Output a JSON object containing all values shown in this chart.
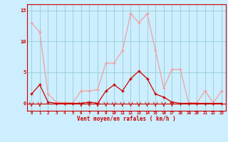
{
  "x": [
    0,
    1,
    2,
    3,
    4,
    5,
    6,
    7,
    8,
    9,
    10,
    11,
    12,
    13,
    14,
    15,
    16,
    17,
    18,
    19,
    20,
    21,
    22,
    23
  ],
  "rafales": [
    13.0,
    11.5,
    1.5,
    0.2,
    0.1,
    0.1,
    2.0,
    2.0,
    2.2,
    6.5,
    6.5,
    8.5,
    14.5,
    13.0,
    14.5,
    8.5,
    2.5,
    5.5,
    5.5,
    0.1,
    0.1,
    2.0,
    0.1,
    2.0
  ],
  "moyen": [
    1.5,
    3.0,
    0.2,
    0.0,
    0.0,
    0.0,
    0.0,
    0.2,
    0.0,
    2.0,
    3.0,
    2.0,
    4.0,
    5.2,
    4.0,
    1.5,
    1.0,
    0.2,
    0.0,
    0.0,
    0.0,
    0.0,
    0.0,
    0.0
  ],
  "color_rafales": "#f0a0a0",
  "color_moyen": "#cc0000",
  "bg_color": "#cceeff",
  "grid_color": "#99cccc",
  "xlabel": "Vent moyen/en rafales ( km/h )",
  "yticks": [
    0,
    5,
    10,
    15
  ],
  "ylim": [
    -1.2,
    16.0
  ],
  "xlim": [
    -0.5,
    23.5
  ]
}
